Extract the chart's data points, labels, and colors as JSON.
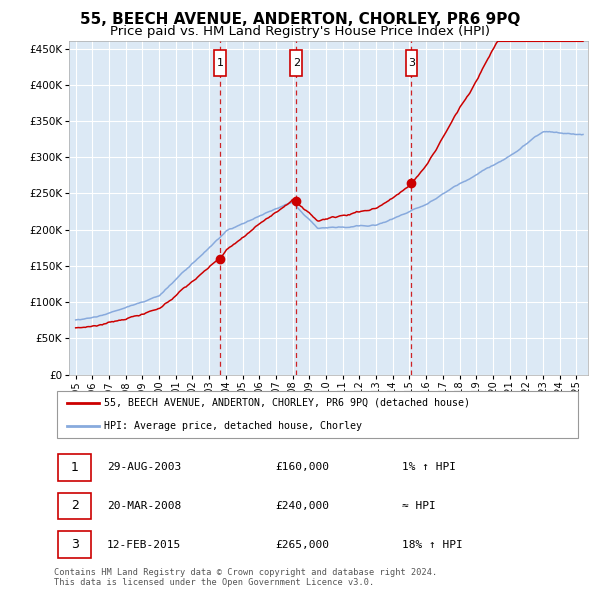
{
  "title": "55, BEECH AVENUE, ANDERTON, CHORLEY, PR6 9PQ",
  "subtitle": "Price paid vs. HM Land Registry's House Price Index (HPI)",
  "title_fontsize": 11,
  "subtitle_fontsize": 9.5,
  "background_color": "#ffffff",
  "plot_bg_color": "#dce9f5",
  "grid_color": "#ffffff",
  "ylim": [
    0,
    460000
  ],
  "yticks": [
    0,
    50000,
    100000,
    150000,
    200000,
    250000,
    300000,
    350000,
    400000,
    450000
  ],
  "sale_dates": [
    2003.66,
    2008.22,
    2015.12
  ],
  "sale_prices": [
    160000,
    240000,
    265000
  ],
  "sale_labels": [
    "1",
    "2",
    "3"
  ],
  "sale_color": "#cc0000",
  "hpi_color": "#88aadd",
  "legend_label_price": "55, BEECH AVENUE, ANDERTON, CHORLEY, PR6 9PQ (detached house)",
  "legend_label_hpi": "HPI: Average price, detached house, Chorley",
  "table_entries": [
    {
      "label": "1",
      "date": "29-AUG-2003",
      "price": "£160,000",
      "change": "1% ↑ HPI"
    },
    {
      "label": "2",
      "date": "20-MAR-2008",
      "price": "£240,000",
      "change": "≈ HPI"
    },
    {
      "label": "3",
      "date": "12-FEB-2015",
      "price": "£265,000",
      "change": "18% ↑ HPI"
    }
  ],
  "footer": "Contains HM Land Registry data © Crown copyright and database right 2024.\nThis data is licensed under the Open Government Licence v3.0.",
  "dashed_line_color": "#cc0000",
  "box_color": "#cc0000"
}
